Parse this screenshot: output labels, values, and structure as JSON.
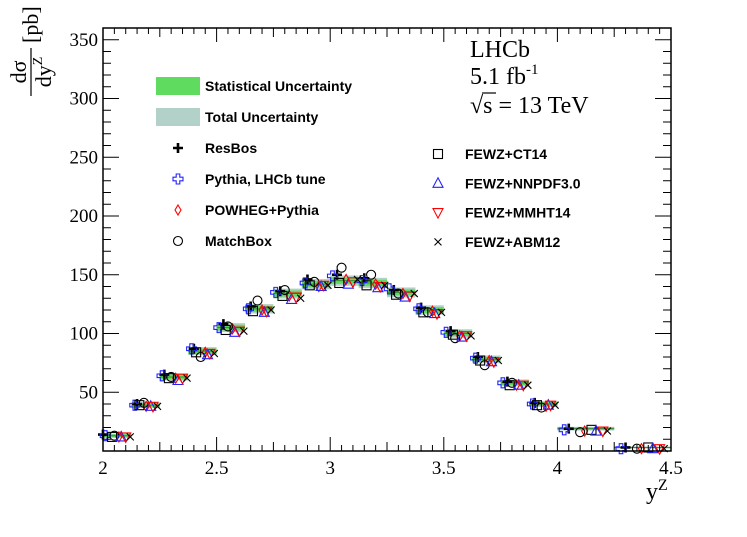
{
  "chart_data": {
    "type": "scatter",
    "title": "",
    "xlabel": "y",
    "xlabel_sup": "Z",
    "ylabel": {
      "numerator": "dσ",
      "denominator": "dy",
      "denominator_sup": "Z",
      "unit": "[pb]"
    },
    "xlim": [
      2,
      4.5
    ],
    "ylim": [
      0,
      360
    ],
    "x_ticks": [
      "2",
      "2.5",
      "3",
      "3.5",
      "4",
      "4.5"
    ],
    "y_ticks": [
      "50",
      "100",
      "150",
      "200",
      "250",
      "300",
      "350"
    ],
    "grid": false,
    "annotation": {
      "experiment": "LHCb",
      "lumi": "5.1 fb",
      "lumi_sup": "-1",
      "energy_sqrt": "√",
      "energy": "s = 13 TeV"
    },
    "legend_left": [
      {
        "key": "stat",
        "label": "Statistical Uncertainty",
        "color": "#5fdb5f",
        "marker": "box"
      },
      {
        "key": "total",
        "label": "Total Uncertainty",
        "color": "#b2d1c8",
        "marker": "box"
      },
      {
        "key": "resbos",
        "label": "ResBos",
        "color": "#000000",
        "marker": "plus"
      },
      {
        "key": "pythia",
        "label": "Pythia, LHCb tune",
        "color": "#2222ff",
        "marker": "openplus"
      },
      {
        "key": "powheg",
        "label": "POWHEG+Pythia",
        "color": "#ff0000",
        "marker": "diamond"
      },
      {
        "key": "matchbox",
        "label": "MatchBox",
        "color": "#000000",
        "marker": "circle"
      }
    ],
    "legend_right": [
      {
        "key": "ct14",
        "label": "FEWZ+CT14",
        "color": "#000000",
        "marker": "square"
      },
      {
        "key": "nnpdf",
        "label": "FEWZ+NNPDF3.0",
        "color": "#2222ff",
        "marker": "triangle"
      },
      {
        "key": "mmht",
        "label": "FEWZ+MMHT14",
        "color": "#ff0000",
        "marker": "invtriangle"
      },
      {
        "key": "abm",
        "label": "FEWZ+ABM12",
        "color": "#000000",
        "marker": "cross"
      }
    ],
    "bins": [
      {
        "lo": 2.0,
        "hi": 2.125,
        "data": 13,
        "stat": 1.2,
        "total": 1.8
      },
      {
        "lo": 2.125,
        "hi": 2.25,
        "data": 39,
        "stat": 1.6,
        "total": 2.5
      },
      {
        "lo": 2.25,
        "hi": 2.375,
        "data": 63,
        "stat": 2.0,
        "total": 3.0
      },
      {
        "lo": 2.375,
        "hi": 2.5,
        "data": 85,
        "stat": 2.2,
        "total": 3.4
      },
      {
        "lo": 2.5,
        "hi": 2.625,
        "data": 105,
        "stat": 2.4,
        "total": 3.8
      },
      {
        "lo": 2.625,
        "hi": 2.75,
        "data": 121,
        "stat": 2.5,
        "total": 4.0
      },
      {
        "lo": 2.75,
        "hi": 2.875,
        "data": 134,
        "stat": 2.6,
        "total": 4.2
      },
      {
        "lo": 2.875,
        "hi": 3.0,
        "data": 142,
        "stat": 2.7,
        "total": 4.4
      },
      {
        "lo": 3.0,
        "hi": 3.125,
        "data": 145,
        "stat": 2.7,
        "total": 4.4
      },
      {
        "lo": 3.125,
        "hi": 3.25,
        "data": 143,
        "stat": 2.7,
        "total": 4.4
      },
      {
        "lo": 3.25,
        "hi": 3.375,
        "data": 135,
        "stat": 2.6,
        "total": 4.2
      },
      {
        "lo": 3.375,
        "hi": 3.5,
        "data": 120,
        "stat": 2.5,
        "total": 4.0
      },
      {
        "lo": 3.5,
        "hi": 3.625,
        "data": 100,
        "stat": 2.3,
        "total": 3.6
      },
      {
        "lo": 3.625,
        "hi": 3.75,
        "data": 78,
        "stat": 2.1,
        "total": 3.3
      },
      {
        "lo": 3.75,
        "hi": 3.875,
        "data": 58,
        "stat": 1.9,
        "total": 2.9
      },
      {
        "lo": 3.875,
        "hi": 4.0,
        "data": 40,
        "stat": 1.6,
        "total": 2.5
      },
      {
        "lo": 4.0,
        "hi": 4.25,
        "data": 19,
        "stat": 1.0,
        "total": 1.6
      },
      {
        "lo": 4.25,
        "hi": 4.5,
        "data": 3,
        "stat": 0.5,
        "total": 0.8
      }
    ],
    "series": [
      {
        "name": "ResBos",
        "key": "resbos",
        "x": [
          2.0,
          2.15,
          2.27,
          2.4,
          2.53,
          2.65,
          2.78,
          2.9,
          3.03,
          3.15,
          3.28,
          3.4,
          3.53,
          3.65,
          3.78,
          3.9,
          4.05,
          4.3
        ],
        "values": [
          14,
          40,
          65,
          87,
          108,
          123,
          136,
          146,
          150,
          147,
          137,
          122,
          102,
          80,
          59,
          41,
          19,
          3
        ]
      },
      {
        "name": "Pythia, LHCb tune",
        "key": "pythia",
        "x": [
          2.01,
          2.14,
          2.26,
          2.39,
          2.51,
          2.64,
          2.76,
          2.89,
          3.01,
          3.14,
          3.26,
          3.39,
          3.51,
          3.64,
          3.76,
          3.89,
          4.03,
          4.28
        ],
        "values": [
          13,
          39,
          64,
          87,
          105,
          121,
          135,
          143,
          149,
          145,
          138,
          121,
          101,
          79,
          58,
          40,
          18,
          2
        ]
      },
      {
        "name": "POWHEG+Pythia",
        "key": "powheg",
        "x": [
          2.07,
          2.19,
          2.32,
          2.45,
          2.57,
          2.7,
          2.82,
          2.95,
          3.07,
          3.2,
          3.32,
          3.45,
          3.57,
          3.7,
          3.82,
          3.95,
          4.12,
          4.37
        ],
        "values": [
          12,
          38,
          62,
          84,
          104,
          120,
          132,
          140,
          146,
          142,
          134,
          119,
          98,
          77,
          56,
          38,
          17,
          2
        ]
      },
      {
        "name": "MatchBox",
        "key": "matchbox",
        "x": [
          2.05,
          2.18,
          2.3,
          2.43,
          2.55,
          2.68,
          2.8,
          2.93,
          3.05,
          3.18,
          3.3,
          3.43,
          3.55,
          3.68,
          3.8,
          3.93,
          4.1,
          4.35
        ],
        "values": [
          13,
          41,
          63,
          80,
          106,
          128,
          137,
          144,
          156,
          150,
          134,
          118,
          96,
          73,
          58,
          37,
          16,
          2
        ]
      },
      {
        "name": "FEWZ+CT14",
        "key": "ct14",
        "x": [
          2.04,
          2.16,
          2.29,
          2.41,
          2.54,
          2.66,
          2.79,
          2.91,
          3.04,
          3.16,
          3.29,
          3.41,
          3.54,
          3.66,
          3.79,
          3.91,
          4.15,
          4.4
        ],
        "values": [
          12,
          39,
          62,
          84,
          103,
          119,
          132,
          141,
          143,
          141,
          133,
          118,
          99,
          77,
          56,
          39,
          18,
          3
        ]
      },
      {
        "name": "FEWZ+NNPDF3.0",
        "key": "nnpdf",
        "x": [
          2.08,
          2.21,
          2.33,
          2.46,
          2.58,
          2.71,
          2.83,
          2.96,
          3.08,
          3.21,
          3.33,
          3.46,
          3.58,
          3.71,
          3.83,
          3.96,
          4.17,
          4.42
        ],
        "values": [
          12,
          38,
          60,
          82,
          101,
          118,
          129,
          140,
          142,
          139,
          131,
          117,
          97,
          76,
          56,
          39,
          17,
          2
        ]
      },
      {
        "name": "FEWZ+MMHT14",
        "key": "mmht",
        "x": [
          2.1,
          2.22,
          2.35,
          2.47,
          2.6,
          2.72,
          2.85,
          2.97,
          3.1,
          3.22,
          3.35,
          3.47,
          3.6,
          3.72,
          3.85,
          3.97,
          4.2,
          4.45
        ],
        "values": [
          12,
          38,
          62,
          83,
          102,
          119,
          131,
          141,
          144,
          140,
          132,
          117,
          98,
          76,
          56,
          39,
          17,
          2
        ]
      },
      {
        "name": "FEWZ+ABM12",
        "key": "abm",
        "x": [
          2.12,
          2.24,
          2.37,
          2.49,
          2.62,
          2.74,
          2.87,
          2.99,
          3.12,
          3.24,
          3.37,
          3.49,
          3.62,
          3.74,
          3.87,
          3.99,
          4.22,
          4.47
        ],
        "values": [
          12,
          38,
          62,
          83,
          102,
          120,
          130,
          141,
          146,
          141,
          134,
          118,
          98,
          77,
          56,
          39,
          17,
          2
        ]
      }
    ]
  }
}
